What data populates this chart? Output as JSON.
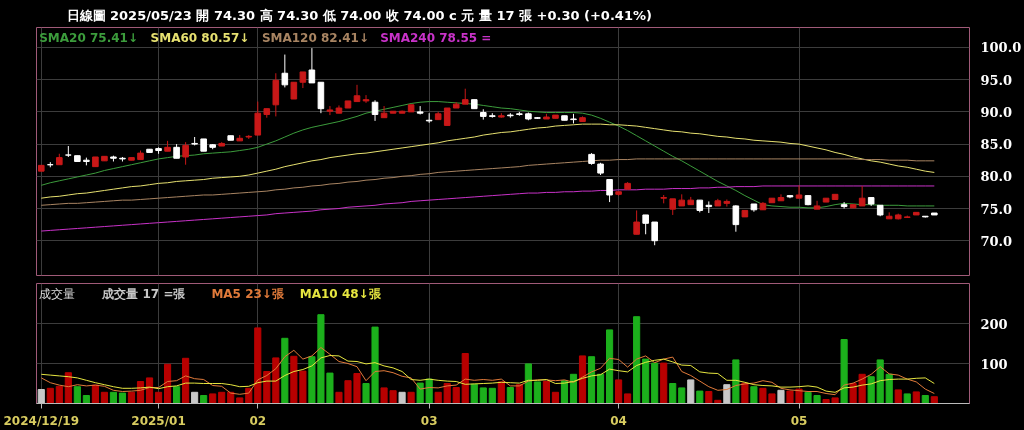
{
  "chart_data": [
    {
      "type": "candlestick",
      "title": "日線圖 2025/05/23 開 74.30 高 74.30 低 74.00 收 74.00 c 元 量 17 張 +0.30 (+0.41%)",
      "categories": [
        "2024/12/19",
        null,
        null,
        null,
        null,
        null,
        null,
        null,
        null,
        null,
        null,
        null,
        null,
        "2025/01",
        null,
        null,
        null,
        null,
        null,
        null,
        null,
        null,
        null,
        null,
        "02",
        null,
        null,
        null,
        null,
        null,
        null,
        null,
        null,
        null,
        null,
        null,
        null,
        null,
        null,
        null,
        null,
        null,
        null,
        "03",
        null,
        null,
        null,
        null,
        null,
        null,
        null,
        null,
        null,
        null,
        null,
        null,
        null,
        null,
        null,
        null,
        null,
        null,
        null,
        null,
        "04",
        null,
        null,
        null,
        null,
        null,
        null,
        null,
        null,
        null,
        null,
        null,
        null,
        null,
        null,
        null,
        null,
        null,
        null,
        null,
        "05",
        null,
        null,
        null,
        null,
        null,
        null,
        null,
        null,
        null,
        null,
        null,
        null,
        null,
        null,
        null
      ],
      "ohlc": [
        [
          80.8,
          81.7,
          80.8,
          81.7
        ],
        [
          81.8,
          82.2,
          81.4,
          81.8
        ],
        [
          81.8,
          83.5,
          81.8,
          82.9
        ],
        [
          83.3,
          84.7,
          83.0,
          83.3
        ],
        [
          83.2,
          83.2,
          82.3,
          82.3
        ],
        [
          82.5,
          82.9,
          81.7,
          82.3
        ],
        [
          81.5,
          83.0,
          81.5,
          83.0
        ],
        [
          82.4,
          83.1,
          82.4,
          83.1
        ],
        [
          83.0,
          83.2,
          82.3,
          82.8
        ],
        [
          82.8,
          83.0,
          82.3,
          82.7
        ],
        [
          82.5,
          82.9,
          82.5,
          82.9
        ],
        [
          82.6,
          84.0,
          82.6,
          83.6
        ],
        [
          84.2,
          84.2,
          83.7,
          83.7
        ],
        [
          84.3,
          84.5,
          83.5,
          84.0
        ],
        [
          83.9,
          85.5,
          83.9,
          84.5
        ],
        [
          84.5,
          85.0,
          82.8,
          82.8
        ],
        [
          83.0,
          85.3,
          81.8,
          84.8
        ],
        [
          85.1,
          86.1,
          84.8,
          85.0
        ],
        [
          85.8,
          85.8,
          83.9,
          83.9
        ],
        [
          84.9,
          85.0,
          84.2,
          84.5
        ],
        [
          84.7,
          85.3,
          84.7,
          85.1
        ],
        [
          86.3,
          86.3,
          85.6,
          85.6
        ],
        [
          85.5,
          86.4,
          85.5,
          85.9
        ],
        [
          86.1,
          86.4,
          85.8,
          86.2
        ],
        [
          86.4,
          91.6,
          86.4,
          89.8
        ],
        [
          89.6,
          90.5,
          89.1,
          90.5
        ],
        [
          91.1,
          96.0,
          89.3,
          94.9
        ],
        [
          96.0,
          98.9,
          93.8,
          94.2
        ],
        [
          92.0,
          94.6,
          92.0,
          94.6
        ],
        [
          94.6,
          96.2,
          93.7,
          96.2
        ],
        [
          96.5,
          99.9,
          94.5,
          94.5
        ],
        [
          94.6,
          94.6,
          89.8,
          90.5
        ],
        [
          90.1,
          90.9,
          89.5,
          90.3
        ],
        [
          89.8,
          91.0,
          89.8,
          90.6
        ],
        [
          90.6,
          91.7,
          90.6,
          91.7
        ],
        [
          91.6,
          94.2,
          91.6,
          92.5
        ],
        [
          91.7,
          92.6,
          91.4,
          91.9
        ],
        [
          91.5,
          91.8,
          88.6,
          89.6
        ],
        [
          89.1,
          90.9,
          89.1,
          89.8
        ],
        [
          89.8,
          90.1,
          89.8,
          90.1
        ],
        [
          89.8,
          90.2,
          89.8,
          90.1
        ],
        [
          90.0,
          91.1,
          90.0,
          91.1
        ],
        [
          90.0,
          90.9,
          89.6,
          89.8
        ],
        [
          88.7,
          89.8,
          88.3,
          88.6
        ],
        [
          88.8,
          90.0,
          88.8,
          89.7
        ],
        [
          87.9,
          90.6,
          87.9,
          90.6
        ],
        [
          90.6,
          91.5,
          90.6,
          91.2
        ],
        [
          91.2,
          93.6,
          91.2,
          91.9
        ],
        [
          91.9,
          91.9,
          90.5,
          90.5
        ],
        [
          89.9,
          90.4,
          88.8,
          89.3
        ],
        [
          89.4,
          89.8,
          89.1,
          89.3
        ],
        [
          89.2,
          89.8,
          89.1,
          89.4
        ],
        [
          89.5,
          89.8,
          89.1,
          89.4
        ],
        [
          89.7,
          90.0,
          89.4,
          89.6
        ],
        [
          89.7,
          89.9,
          88.7,
          88.9
        ],
        [
          89.1,
          89.2,
          88.9,
          89.0
        ],
        [
          88.9,
          89.7,
          88.9,
          89.2
        ],
        [
          89.0,
          89.5,
          89.0,
          89.5
        ],
        [
          89.4,
          89.4,
          88.7,
          88.7
        ],
        [
          88.9,
          89.7,
          88.2,
          88.8
        ],
        [
          88.5,
          89.3,
          88.5,
          89.1
        ],
        [
          83.4,
          83.6,
          81.8,
          82.0
        ],
        [
          81.9,
          82.1,
          80.2,
          80.5
        ],
        [
          79.5,
          79.5,
          76.0,
          77.1
        ],
        [
          77.2,
          77.6,
          77.0,
          77.6
        ],
        [
          78.0,
          79.1,
          78.0,
          78.9
        ],
        [
          71.0,
          74.7,
          71.0,
          72.9
        ],
        [
          74.0,
          74.0,
          71.0,
          72.7
        ],
        [
          72.9,
          72.9,
          69.3,
          70.0
        ],
        [
          76.6,
          77.1,
          75.8,
          76.7
        ],
        [
          74.9,
          76.5,
          74.0,
          76.5
        ],
        [
          75.4,
          77.2,
          75.4,
          76.3
        ],
        [
          75.6,
          76.8,
          75.6,
          76.3
        ],
        [
          76.3,
          76.3,
          74.4,
          74.7
        ],
        [
          75.5,
          76.1,
          74.3,
          75.3
        ],
        [
          75.4,
          76.5,
          75.4,
          76.2
        ],
        [
          75.8,
          76.4,
          75.3,
          76.1
        ],
        [
          75.4,
          75.5,
          71.4,
          72.5
        ],
        [
          73.7,
          74.7,
          73.7,
          74.7
        ],
        [
          75.7,
          75.7,
          74.5,
          74.8
        ],
        [
          74.8,
          76.0,
          74.8,
          75.8
        ],
        [
          75.9,
          76.6,
          75.9,
          76.6
        ],
        [
          76.2,
          77.2,
          76.2,
          76.7
        ],
        [
          77.0,
          77.1,
          76.6,
          76.8
        ],
        [
          76.6,
          78.6,
          76.6,
          77.1
        ],
        [
          77.0,
          77.0,
          75.5,
          75.6
        ],
        [
          74.9,
          76.2,
          74.9,
          75.4
        ],
        [
          76.0,
          76.6,
          76.0,
          76.6
        ],
        [
          76.4,
          77.2,
          76.4,
          77.2
        ],
        [
          75.6,
          76.0,
          75.0,
          75.3
        ],
        [
          75.1,
          75.6,
          75.1,
          75.6
        ],
        [
          75.4,
          78.5,
          75.4,
          76.6
        ],
        [
          76.7,
          76.7,
          75.4,
          75.7
        ],
        [
          75.5,
          75.5,
          73.8,
          74.0
        ],
        [
          73.4,
          74.4,
          73.4,
          73.8
        ],
        [
          73.4,
          74.2,
          73.3,
          74.0
        ],
        [
          73.6,
          73.9,
          73.6,
          73.7
        ],
        [
          74.0,
          74.4,
          74.0,
          74.4
        ],
        [
          73.8,
          73.8,
          73.6,
          73.7
        ],
        [
          74.3,
          74.3,
          74.0,
          74.0
        ]
      ],
      "colors": [
        "#c81818",
        "#ffffff",
        "#c81818",
        "#ffffff",
        "#ffffff",
        "#ffffff",
        "#c81818",
        "#c81818",
        "#ffffff",
        "#ffffff",
        "#c81818",
        "#c81818",
        "#ffffff",
        "#ffffff",
        "#c81818",
        "#ffffff",
        "#c81818",
        "#ffffff",
        "#ffffff",
        "#ffffff",
        "#c81818",
        "#ffffff",
        "#c81818",
        "#c81818",
        "#c81818",
        "#c81818",
        "#c81818",
        "#ffffff",
        "#c81818",
        "#c81818",
        "#ffffff",
        "#ffffff",
        "#c81818",
        "#c81818",
        "#c81818",
        "#c81818",
        "#c81818",
        "#ffffff",
        "#c81818",
        "#c81818",
        "#c81818",
        "#c81818",
        "#ffffff",
        "#ffffff",
        "#c81818",
        "#c81818",
        "#c81818",
        "#c81818",
        "#ffffff",
        "#ffffff",
        "#ffffff",
        "#c81818",
        "#ffffff",
        "#ffffff",
        "#ffffff",
        "#ffffff",
        "#c81818",
        "#c81818",
        "#ffffff",
        "#ffffff",
        "#c81818",
        "#ffffff",
        "#ffffff",
        "#ffffff",
        "#c81818",
        "#c81818",
        "#c81818",
        "#ffffff",
        "#ffffff",
        "#c81818",
        "#c81818",
        "#c81818",
        "#c81818",
        "#ffffff",
        "#ffffff",
        "#c81818",
        "#c81818",
        "#ffffff",
        "#c81818",
        "#ffffff",
        "#c81818",
        "#c81818",
        "#c81818",
        "#ffffff",
        "#c81818",
        "#ffffff",
        "#c81818",
        "#c81818",
        "#c81818",
        "#ffffff",
        "#c81818",
        "#c81818",
        "#ffffff",
        "#ffffff",
        "#c81818",
        "#c81818",
        "#c81818",
        "#c81818",
        "#ffffff",
        "#ffffff"
      ],
      "series": [
        {
          "type": "line",
          "name": "SMA20 75.41↓",
          "color": "#3c9c3c",
          "values": [
            78.6,
            79.0,
            79.3,
            79.6,
            79.9,
            80.2,
            80.5,
            80.9,
            81.2,
            81.5,
            81.8,
            82.1,
            82.4,
            82.7,
            82.9,
            83.1,
            83.2,
            83.3,
            83.5,
            83.6,
            83.7,
            83.8,
            84.0,
            84.2,
            84.5,
            85.0,
            85.5,
            86.1,
            86.7,
            87.2,
            87.6,
            87.9,
            88.2,
            88.5,
            88.9,
            89.3,
            89.8,
            90.1,
            90.4,
            90.7,
            91.0,
            91.3,
            91.5,
            91.6,
            91.6,
            91.5,
            91.4,
            91.3,
            91.2,
            91.0,
            90.8,
            90.6,
            90.5,
            90.3,
            90.1,
            90.0,
            89.9,
            89.9,
            89.9,
            89.9,
            89.8,
            89.5,
            89.0,
            88.4,
            87.8,
            87.1,
            86.3,
            85.5,
            84.7,
            83.9,
            83.1,
            82.4,
            81.6,
            80.8,
            80.0,
            79.2,
            78.5,
            77.8,
            77.0,
            76.3,
            75.6,
            75.4,
            75.3,
            75.2,
            75.2,
            75.1,
            75.1,
            75.3,
            75.6,
            75.8,
            75.7,
            75.6,
            75.6,
            75.5,
            75.5,
            75.5,
            75.4,
            75.4,
            75.4,
            75.4
          ]
        },
        {
          "type": "line",
          "name": "SMA60 80.57↓",
          "color": "#e6e070",
          "values": [
            76.6,
            76.8,
            76.9,
            77.1,
            77.3,
            77.4,
            77.6,
            77.8,
            78.0,
            78.2,
            78.4,
            78.5,
            78.7,
            78.9,
            79.0,
            79.2,
            79.3,
            79.4,
            79.5,
            79.7,
            79.8,
            79.9,
            80.0,
            80.2,
            80.5,
            80.8,
            81.1,
            81.5,
            81.8,
            82.1,
            82.4,
            82.6,
            82.9,
            83.1,
            83.3,
            83.5,
            83.6,
            83.8,
            84.0,
            84.2,
            84.4,
            84.6,
            84.8,
            85.0,
            85.2,
            85.5,
            85.7,
            85.9,
            86.1,
            86.4,
            86.6,
            86.8,
            86.9,
            87.1,
            87.3,
            87.5,
            87.6,
            87.8,
            87.9,
            88.0,
            88.1,
            88.1,
            88.1,
            88.0,
            88.0,
            87.9,
            87.8,
            87.6,
            87.4,
            87.2,
            87.0,
            86.9,
            86.7,
            86.6,
            86.4,
            86.2,
            86.1,
            85.9,
            85.8,
            85.6,
            85.5,
            85.4,
            85.3,
            85.1,
            85.0,
            84.7,
            84.4,
            84.1,
            83.7,
            83.4,
            83.0,
            82.7,
            82.4,
            82.2,
            81.9,
            81.6,
            81.4,
            81.1,
            80.8,
            80.6
          ]
        },
        {
          "type": "line",
          "name": "SMA120 82.41↓",
          "color": "#a88462",
          "values": [
            75.5,
            75.6,
            75.7,
            75.8,
            75.8,
            75.9,
            76.0,
            76.1,
            76.2,
            76.3,
            76.3,
            76.4,
            76.5,
            76.6,
            76.7,
            76.8,
            76.9,
            77.0,
            77.1,
            77.1,
            77.2,
            77.3,
            77.4,
            77.5,
            77.6,
            77.7,
            77.9,
            78.0,
            78.2,
            78.3,
            78.5,
            78.6,
            78.8,
            78.9,
            79.1,
            79.2,
            79.4,
            79.5,
            79.7,
            79.8,
            80.0,
            80.1,
            80.3,
            80.4,
            80.6,
            80.7,
            80.8,
            80.9,
            81.0,
            81.1,
            81.2,
            81.3,
            81.4,
            81.5,
            81.7,
            81.8,
            81.9,
            82.0,
            82.1,
            82.2,
            82.3,
            82.4,
            82.5,
            82.5,
            82.6,
            82.6,
            82.7,
            82.7,
            82.7,
            82.7,
            82.7,
            82.7,
            82.7,
            82.7,
            82.7,
            82.7,
            82.7,
            82.7,
            82.7,
            82.7,
            82.7,
            82.7,
            82.7,
            82.7,
            82.7,
            82.7,
            82.7,
            82.7,
            82.7,
            82.7,
            82.7,
            82.6,
            82.6,
            82.6,
            82.5,
            82.5,
            82.5,
            82.4,
            82.4,
            82.4
          ]
        },
        {
          "type": "line",
          "name": "SMA240 78.55 =",
          "color": "#c832c8",
          "values": [
            71.5,
            71.6,
            71.7,
            71.8,
            71.9,
            72.0,
            72.1,
            72.2,
            72.3,
            72.4,
            72.5,
            72.6,
            72.7,
            72.8,
            72.9,
            73.0,
            73.1,
            73.2,
            73.3,
            73.4,
            73.5,
            73.6,
            73.7,
            73.8,
            73.9,
            74.0,
            74.2,
            74.3,
            74.4,
            74.5,
            74.6,
            74.8,
            74.9,
            75.0,
            75.2,
            75.3,
            75.4,
            75.5,
            75.7,
            75.8,
            75.9,
            76.1,
            76.2,
            76.3,
            76.4,
            76.5,
            76.6,
            76.7,
            76.8,
            76.9,
            77.0,
            77.1,
            77.2,
            77.3,
            77.4,
            77.4,
            77.5,
            77.5,
            77.6,
            77.6,
            77.7,
            77.7,
            77.8,
            77.8,
            77.9,
            77.9,
            77.9,
            78.0,
            78.0,
            78.0,
            78.1,
            78.1,
            78.1,
            78.2,
            78.2,
            78.3,
            78.3,
            78.4,
            78.4,
            78.4,
            78.5,
            78.5,
            78.5,
            78.5,
            78.5,
            78.5,
            78.5,
            78.5,
            78.5,
            78.5,
            78.5,
            78.5,
            78.5,
            78.5,
            78.5,
            78.5,
            78.5,
            78.5,
            78.5,
            78.5
          ]
        }
      ],
      "ylim": [
        64.6,
        103.1
      ],
      "yticks": [
        {
          "value": 70,
          "label": "70.0"
        },
        {
          "value": 75,
          "label": "75.0"
        },
        {
          "value": 80,
          "label": "80.0"
        },
        {
          "value": 85,
          "label": "85.0"
        },
        {
          "value": 90,
          "label": "90.0"
        },
        {
          "value": 95,
          "label": "95.0"
        },
        {
          "value": 100,
          "label": "100.0"
        }
      ],
      "grid": true,
      "legend": "top left",
      "tick_labels": "y"
    },
    {
      "type": "bar",
      "title": "成交量",
      "categories": [
        "2024/12/19",
        null,
        null,
        null,
        null,
        null,
        null,
        null,
        null,
        null,
        null,
        null,
        null,
        "2025/01",
        null,
        null,
        null,
        null,
        null,
        null,
        null,
        null,
        null,
        null,
        "02",
        null,
        null,
        null,
        null,
        null,
        null,
        null,
        null,
        null,
        null,
        null,
        null,
        null,
        null,
        null,
        null,
        null,
        null,
        "03",
        null,
        null,
        null,
        null,
        null,
        null,
        null,
        null,
        null,
        null,
        null,
        null,
        null,
        null,
        null,
        null,
        null,
        null,
        null,
        null,
        "04",
        null,
        null,
        null,
        null,
        null,
        null,
        null,
        null,
        null,
        null,
        null,
        null,
        null,
        null,
        null,
        null,
        null,
        null,
        null,
        "05",
        null,
        null,
        null,
        null,
        null,
        null,
        null,
        null,
        null,
        null,
        null,
        null,
        null,
        null,
        null
      ],
      "series": [
        {
          "type": "bar",
          "name": "成交量 17 =張",
          "values": [
            35,
            38,
            43,
            77,
            42,
            20,
            46,
            28,
            28,
            26,
            28,
            55,
            64,
            28,
            98,
            42,
            113,
            28,
            20,
            24,
            28,
            28,
            14,
            38,
            189,
            80,
            114,
            163,
            118,
            81,
            117,
            222,
            76,
            28,
            57,
            75,
            50,
            191,
            39,
            32,
            28,
            28,
            51,
            61,
            28,
            50,
            40,
            125,
            48,
            39,
            38,
            54,
            40,
            47,
            99,
            54,
            55,
            28,
            57,
            73,
            119,
            117,
            73,
            184,
            59,
            24,
            217,
            111,
            101,
            101,
            50,
            39,
            59,
            31,
            30,
            8,
            47,
            109,
            51,
            42,
            38,
            24,
            33,
            31,
            36,
            28,
            20,
            10,
            14,
            160,
            50,
            73,
            67,
            109,
            73,
            34,
            24,
            29,
            20,
            17
          ],
          "colors": [
            "#c8c8c8",
            "#b80000",
            "#b80000",
            "#b80000",
            "#1cb01c",
            "#1cb01c",
            "#b80000",
            "#b80000",
            "#1cb01c",
            "#1cb01c",
            "#b80000",
            "#b80000",
            "#b80000",
            "#b80000",
            "#b80000",
            "#1cb01c",
            "#b80000",
            "#c8c8c8",
            "#1cb01c",
            "#b80000",
            "#b80000",
            "#b80000",
            "#b80000",
            "#b80000",
            "#b80000",
            "#b80000",
            "#b80000",
            "#1cb01c",
            "#b80000",
            "#b80000",
            "#1cb01c",
            "#1cb01c",
            "#1cb01c",
            "#b80000",
            "#b80000",
            "#b80000",
            "#1cb01c",
            "#1cb01c",
            "#b80000",
            "#b80000",
            "#c8c8c8",
            "#b80000",
            "#1cb01c",
            "#1cb01c",
            "#b80000",
            "#b80000",
            "#b80000",
            "#b80000",
            "#1cb01c",
            "#1cb01c",
            "#1cb01c",
            "#b80000",
            "#1cb01c",
            "#b80000",
            "#1cb01c",
            "#1cb01c",
            "#b80000",
            "#b80000",
            "#1cb01c",
            "#1cb01c",
            "#b80000",
            "#1cb01c",
            "#1cb01c",
            "#1cb01c",
            "#b80000",
            "#b80000",
            "#1cb01c",
            "#1cb01c",
            "#1cb01c",
            "#b80000",
            "#1cb01c",
            "#1cb01c",
            "#c8c8c8",
            "#1cb01c",
            "#b80000",
            "#b80000",
            "#c8c8c8",
            "#1cb01c",
            "#b80000",
            "#1cb01c",
            "#b80000",
            "#b80000",
            "#c8c8c8",
            "#b80000",
            "#b80000",
            "#1cb01c",
            "#1cb01c",
            "#b80000",
            "#b80000",
            "#1cb01c",
            "#b80000",
            "#b80000",
            "#1cb01c",
            "#1cb01c",
            "#1cb01c",
            "#b80000",
            "#1cb01c",
            "#b80000",
            "#1cb01c",
            "#b80000"
          ]
        },
        {
          "type": "line",
          "name": "MA5 23↓張",
          "color": "#e07a3a",
          "values": [
            64,
            52,
            46,
            42,
            47,
            44,
            46,
            43,
            33,
            30,
            31,
            33,
            40,
            40,
            55,
            57,
            69,
            62,
            60,
            45,
            43,
            26,
            23,
            26,
            59,
            70,
            87,
            117,
            133,
            111,
            119,
            140,
            123,
            105,
            100,
            92,
            57,
            80,
            82,
            77,
            68,
            64,
            36,
            40,
            39,
            44,
            46,
            61,
            58,
            60,
            58,
            61,
            44,
            44,
            56,
            59,
            59,
            57,
            59,
            53,
            66,
            79,
            88,
            113,
            110,
            91,
            111,
            119,
            102,
            111,
            116,
            80,
            70,
            56,
            42,
            33,
            35,
            45,
            49,
            51,
            57,
            53,
            38,
            34,
            32,
            30,
            30,
            25,
            22,
            46,
            51,
            61,
            73,
            92,
            74,
            71,
            61,
            54,
            36,
            25
          ]
        },
        {
          "type": "line",
          "name": "MA10 48↓張",
          "color": "#e6e640",
          "values": [
            73,
            71,
            69,
            67,
            64,
            58,
            52,
            47,
            42,
            38,
            38,
            39,
            41,
            37,
            42,
            44,
            51,
            51,
            50,
            50,
            50,
            47,
            42,
            43,
            52,
            56,
            56,
            70,
            80,
            85,
            94,
            114,
            120,
            119,
            106,
            105,
            99,
            102,
            94,
            89,
            80,
            60,
            58,
            61,
            58,
            56,
            55,
            48,
            49,
            50,
            51,
            53,
            52,
            51,
            58,
            58,
            60,
            50,
            51,
            55,
            63,
            69,
            72,
            86,
            82,
            79,
            95,
            103,
            108,
            111,
            104,
            96,
            95,
            79,
            76,
            75,
            58,
            58,
            53,
            47,
            45,
            44,
            41,
            41,
            42,
            44,
            41,
            31,
            28,
            39,
            41,
            46,
            49,
            57,
            60,
            61,
            61,
            63,
            64,
            50
          ]
        }
      ],
      "ylim": [
        0,
        300
      ],
      "yticks": [
        100,
        200
      ],
      "grid": true,
      "legend": "top left"
    }
  ]
}
